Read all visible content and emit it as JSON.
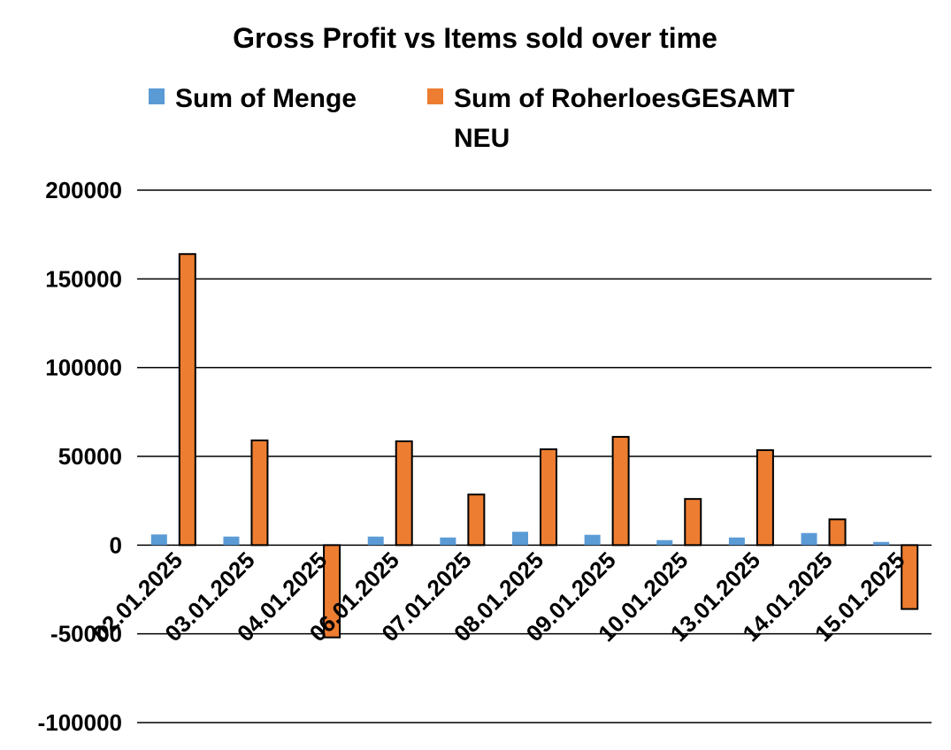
{
  "chart_data": {
    "type": "bar",
    "title": "Gross Profit vs Items sold over time",
    "xlabel": "",
    "ylabel": "",
    "ylim": [
      -100000,
      200000
    ],
    "yticks": [
      200000,
      150000,
      100000,
      50000,
      0,
      -50000,
      -100000
    ],
    "grid": true,
    "legend_position": "top",
    "categories": [
      "02.01.2025",
      "03.01.2025",
      "04.01.2025",
      "06.01.2025",
      "07.01.2025",
      "08.01.2025",
      "09.01.2025",
      "10.01.2025",
      "13.01.2025",
      "14.01.2025",
      "15.01.2025"
    ],
    "series": [
      {
        "name": "Sum of Menge",
        "color": "#5B9BD5",
        "values": [
          6000,
          4800,
          0,
          4800,
          4300,
          7500,
          5800,
          2800,
          4300,
          6800,
          1800
        ]
      },
      {
        "name": "Sum of RoherloesGESAMT NEU",
        "legend_lines": [
          "Sum of RoherloesGESAMT",
          "NEU"
        ],
        "color": "#ED7D31",
        "values": [
          164000,
          59000,
          -52000,
          58500,
          28500,
          54000,
          61000,
          26000,
          53500,
          14500,
          -36000
        ]
      }
    ]
  }
}
